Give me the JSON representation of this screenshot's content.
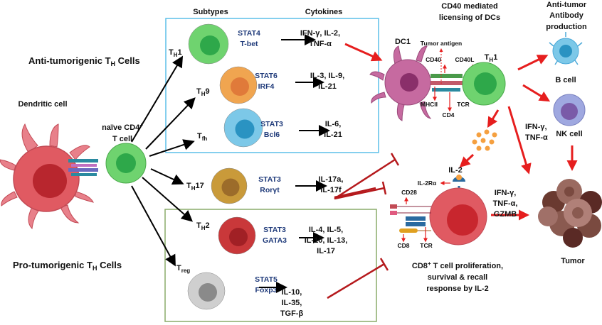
{
  "headers": {
    "subtypes": "Subtypes",
    "cytokines": "Cytokines",
    "cd40_line1": "CD40 mediated",
    "cd40_line2": "licensing of DCs",
    "antibody_line1": "Anti-tumor",
    "antibody_line2": "Antibody",
    "antibody_line3": "production"
  },
  "groups": {
    "anti": {
      "pre": "Anti-tumorigenic T",
      "sub": "H",
      "post": " Cells"
    },
    "pro": {
      "pre": "Pro-tumorigenic T",
      "sub": "H",
      "post": " Cells"
    }
  },
  "cells": {
    "dendritic": "Dendritic cell",
    "naive_line1": "naïve CD4",
    "naive_sup": "+",
    "naive_line2": "T cell",
    "dc1": "DC1",
    "b_cell": "B cell",
    "nk_cell": "NK cell",
    "tumor": "Tumor"
  },
  "subsets": [
    {
      "t": "T",
      "sub": "H",
      "suf": "1",
      "tf1": "STAT4",
      "tf2": "T-bet",
      "cy": [
        "IFN-γ, IL-2,",
        "TNF-α"
      ],
      "color": "#6fd36f",
      "core": "#2ea84a"
    },
    {
      "t": "T",
      "sub": "H",
      "suf": "9",
      "tf1": "STAT6",
      "tf2": "IRF4",
      "cy": [
        "IL-3, IL-9,",
        "IL-21"
      ],
      "color": "#f0a550",
      "core": "#e07a3a"
    },
    {
      "t": "T",
      "sub": "fh",
      "suf": "",
      "tf1": "STAT3",
      "tf2": "Bcl6",
      "cy": [
        "IL-6,",
        "IL-21"
      ],
      "color": "#7cc8e8",
      "core": "#2a93c2"
    },
    {
      "t": "T",
      "sub": "H",
      "suf": "17",
      "tf1": "STAT3",
      "tf2": "Rorγt",
      "cy": [
        "IL-17a,",
        "IL-17f"
      ],
      "color": "#c99a3a",
      "core": "#9c6c2a"
    },
    {
      "t": "T",
      "sub": "H",
      "suf": "2",
      "tf1": "STAT3",
      "tf2": "GATA3",
      "cy": [
        "IL-4, IL-5,",
        "IL-10, IL-13,",
        "IL-17"
      ],
      "color": "#c9383a",
      "core": "#a12025"
    },
    {
      "t": "T",
      "sub": "reg",
      "suf": "",
      "tf1": "STAT5",
      "tf2": "Foxp3",
      "cy": [
        "IL-10,",
        "IL-35,",
        "TGF-β"
      ],
      "color": "#cfcfcf",
      "core": "#8a8a8a"
    }
  ],
  "licensing": {
    "tumor_antigen": "Tumor antigen",
    "cd40": "CD40",
    "cd40l": "CD40L",
    "mhcii": "MHCII",
    "cd4": "CD4",
    "tcr": "TCR",
    "th1": {
      "t": "T",
      "sub": "H",
      "suf": "1"
    }
  },
  "cytokines_nk": [
    "IFN-γ,",
    "TNF-α"
  ],
  "il2": "IL-2",
  "cd8cell": {
    "il2ra": "IL-2Rα",
    "cd28": "CD28",
    "cd8": "CD8",
    "tcr": "TCR",
    "effector": [
      "IFN-γ,",
      "TNF-α,",
      "GZMB"
    ],
    "caption": [
      "CD8",
      "+",
      " T cell proliferation,",
      "survival & recall",
      "response by IL-2"
    ]
  },
  "colors": {
    "activation": "#e61e1e",
    "inhibition": "#b5191c",
    "th_box": "#5bbfe8",
    "pro_box": "#8aab6a",
    "tf_text": "#1f3a7a"
  }
}
